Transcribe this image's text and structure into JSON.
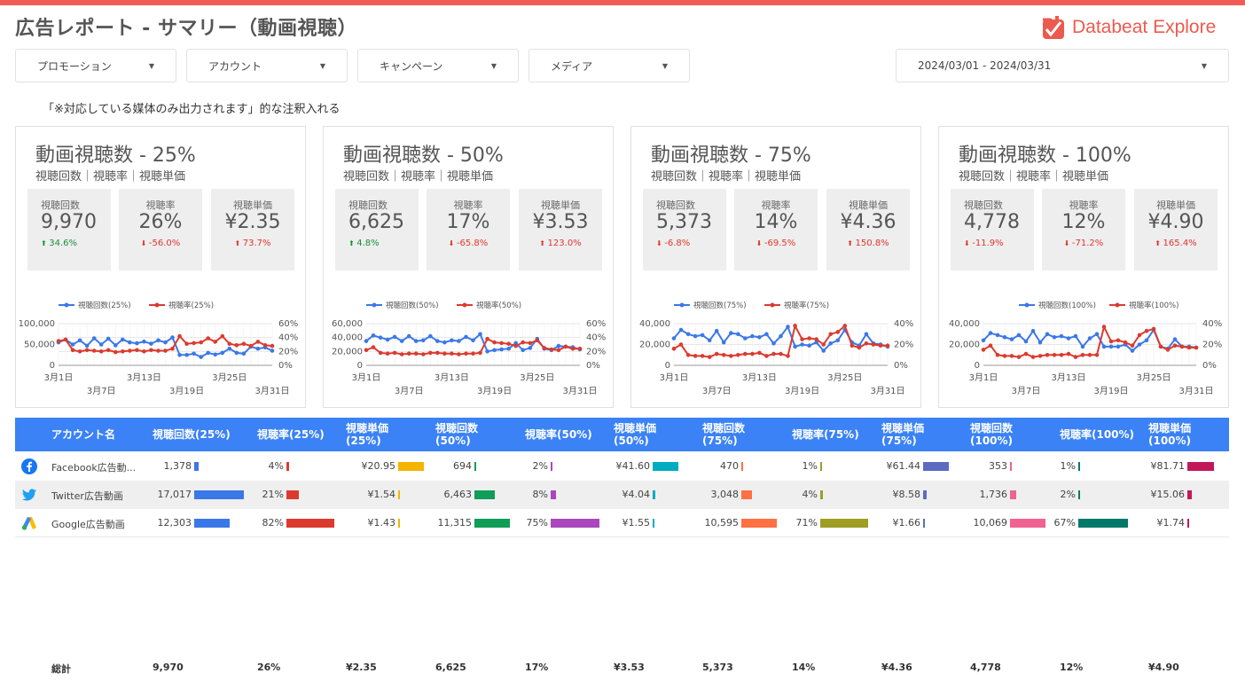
{
  "header": {
    "title": "広告レポート - サマリー（動画視聴）",
    "logo_text": "Databeat Explore",
    "accent": "#f25a56"
  },
  "filters": [
    {
      "label": "プロモーション"
    },
    {
      "label": "アカウント"
    },
    {
      "label": "キャンペーン"
    },
    {
      "label": "メディア"
    }
  ],
  "date_range": "2024/03/01 - 2024/03/31",
  "note": "「※対応している媒体のみ出力されます」的な注釈入れる",
  "cards": [
    {
      "title": "動画視聴数 - 25%",
      "subtitle": "視聴回数｜視聴率｜視聴単価",
      "kpis": [
        {
          "label": "視聴回数",
          "value": "9,970",
          "delta": "34.6%",
          "dir": "up"
        },
        {
          "label": "視聴率",
          "value": "26%",
          "delta": "-56.0%",
          "dir": "down"
        },
        {
          "label": "視聴単価",
          "value": "¥2.35",
          "delta": "73.7%",
          "dir": "upred"
        }
      ],
      "legend": [
        "視聴回数(25%)",
        "視聴率(25%)"
      ],
      "left_ticks": [
        "100,000",
        "50,000",
        "0"
      ],
      "right_ticks": [
        "60%",
        "40%",
        "20%",
        "0%"
      ],
      "xticks_top": [
        "3月1日",
        "3月13日",
        "3月25日"
      ],
      "xticks_bottom": [
        "3月7日",
        "3月19日",
        "3月31日"
      ]
    },
    {
      "title": "動画視聴数 - 50%",
      "subtitle": "視聴回数｜視聴率｜視聴単価",
      "kpis": [
        {
          "label": "視聴回数",
          "value": "6,625",
          "delta": "4.8%",
          "dir": "up"
        },
        {
          "label": "視聴率",
          "value": "17%",
          "delta": "-65.8%",
          "dir": "down"
        },
        {
          "label": "視聴単価",
          "value": "¥3.53",
          "delta": "123.0%",
          "dir": "upred"
        }
      ],
      "legend": [
        "視聴回数(50%)",
        "視聴率(50%)"
      ],
      "left_ticks": [
        "60,000",
        "40,000",
        "20,000",
        "0"
      ],
      "right_ticks": [
        "60%",
        "40%",
        "20%",
        "0%"
      ],
      "xticks_top": [
        "3月1日",
        "3月13日",
        "3月25日"
      ],
      "xticks_bottom": [
        "3月7日",
        "3月19日",
        "3月31日"
      ]
    },
    {
      "title": "動画視聴数 - 75%",
      "subtitle": "視聴回数｜視聴率｜視聴単価",
      "kpis": [
        {
          "label": "視聴回数",
          "value": "5,373",
          "delta": "-6.8%",
          "dir": "down"
        },
        {
          "label": "視聴率",
          "value": "14%",
          "delta": "-69.5%",
          "dir": "down"
        },
        {
          "label": "視聴単価",
          "value": "¥4.36",
          "delta": "150.8%",
          "dir": "upred"
        }
      ],
      "legend": [
        "視聴回数(75%)",
        "視聴率(75%)"
      ],
      "left_ticks": [
        "40,000",
        "20,000",
        "0"
      ],
      "right_ticks": [
        "40%",
        "20%",
        "0%"
      ],
      "xticks_top": [
        "3月1日",
        "3月13日",
        "3月25日"
      ],
      "xticks_bottom": [
        "3月7日",
        "3月19日",
        "3月31日"
      ]
    },
    {
      "title": "動画視聴数 - 100%",
      "subtitle": "視聴回数｜視聴率｜視聴単価",
      "kpis": [
        {
          "label": "視聴回数",
          "value": "4,778",
          "delta": "-11.9%",
          "dir": "down"
        },
        {
          "label": "視聴率",
          "value": "12%",
          "delta": "-71.2%",
          "dir": "down"
        },
        {
          "label": "視聴単価",
          "value": "¥4.90",
          "delta": "165.4%",
          "dir": "upred"
        }
      ],
      "legend": [
        "視聴回数(100%)",
        "視聴率(100%)"
      ],
      "left_ticks": [
        "40,000",
        "20,000",
        "0"
      ],
      "right_ticks": [
        "40%",
        "20%",
        "0%"
      ],
      "xticks_top": [
        "3月1日",
        "3月13日",
        "3月25日"
      ],
      "xticks_bottom": [
        "3月7日",
        "3月19日",
        "3月31日"
      ]
    }
  ],
  "chart_data": [
    {
      "type": "line",
      "x": [
        "3/1",
        "3/2",
        "3/3",
        "3/4",
        "3/5",
        "3/6",
        "3/7",
        "3/8",
        "3/9",
        "3/10",
        "3/11",
        "3/12",
        "3/13",
        "3/14",
        "3/15",
        "3/16",
        "3/17",
        "3/18",
        "3/19",
        "3/20",
        "3/21",
        "3/22",
        "3/23",
        "3/24",
        "3/25",
        "3/26",
        "3/27",
        "3/28",
        "3/29",
        "3/30",
        "3/31"
      ],
      "series": [
        {
          "name": "視聴回数(25%)",
          "axis": "left",
          "color": "#3b78e7",
          "values": [
            55000,
            62000,
            50000,
            60000,
            47000,
            65000,
            50000,
            64000,
            48000,
            62000,
            55000,
            53000,
            57000,
            52000,
            60000,
            55000,
            67000,
            25000,
            25000,
            28000,
            20000,
            30000,
            26000,
            30000,
            40000,
            30000,
            28000,
            45000,
            40000,
            43000,
            35000
          ]
        },
        {
          "name": "視聴率(25%)",
          "axis": "right",
          "color": "#db3b2f",
          "values": [
            35,
            37,
            22,
            20,
            22,
            21,
            20,
            22,
            19,
            20,
            21,
            22,
            20,
            22,
            21,
            21,
            24,
            42,
            31,
            32,
            33,
            39,
            34,
            42,
            31,
            29,
            31,
            28,
            34,
            29,
            28
          ]
        }
      ],
      "ylim_left": [
        0,
        100000
      ],
      "ylim_right": [
        0,
        60
      ]
    },
    {
      "type": "line",
      "x": [
        "3/1",
        "3/2",
        "3/3",
        "3/4",
        "3/5",
        "3/6",
        "3/7",
        "3/8",
        "3/9",
        "3/10",
        "3/11",
        "3/12",
        "3/13",
        "3/14",
        "3/15",
        "3/16",
        "3/17",
        "3/18",
        "3/19",
        "3/20",
        "3/21",
        "3/22",
        "3/23",
        "3/24",
        "3/25",
        "3/26",
        "3/27",
        "3/28",
        "3/29",
        "3/30",
        "3/31"
      ],
      "series": [
        {
          "name": "視聴回数(50%)",
          "axis": "left",
          "color": "#3b78e7",
          "values": [
            35000,
            43000,
            40000,
            37000,
            41000,
            35000,
            42000,
            35000,
            36000,
            42000,
            35000,
            33000,
            36000,
            35000,
            41000,
            36000,
            45000,
            20000,
            22000,
            23000,
            24000,
            32000,
            22000,
            25000,
            38000,
            24000,
            22000,
            28000,
            27000,
            26000,
            23000
          ]
        },
        {
          "name": "視聴率(50%)",
          "axis": "right",
          "color": "#db3b2f",
          "values": [
            22,
            26,
            18,
            17,
            18,
            16,
            17,
            17,
            16,
            18,
            18,
            17,
            17,
            16,
            17,
            17,
            18,
            38,
            33,
            32,
            31,
            28,
            33,
            32,
            36,
            25,
            23,
            22,
            27,
            24,
            24
          ]
        }
      ],
      "ylim_left": [
        0,
        60000
      ],
      "ylim_right": [
        0,
        60
      ]
    },
    {
      "type": "line",
      "x": [
        "3/1",
        "3/2",
        "3/3",
        "3/4",
        "3/5",
        "3/6",
        "3/7",
        "3/8",
        "3/9",
        "3/10",
        "3/11",
        "3/12",
        "3/13",
        "3/14",
        "3/15",
        "3/16",
        "3/17",
        "3/18",
        "3/19",
        "3/20",
        "3/21",
        "3/22",
        "3/23",
        "3/24",
        "3/25",
        "3/26",
        "3/27",
        "3/28",
        "3/29",
        "3/30",
        "3/31"
      ],
      "series": [
        {
          "name": "視聴回数(75%)",
          "axis": "left",
          "color": "#3b78e7",
          "values": [
            26000,
            34000,
            30000,
            28000,
            29000,
            24000,
            33000,
            22000,
            31000,
            30000,
            26000,
            28000,
            27000,
            30000,
            21000,
            28000,
            37000,
            18000,
            20000,
            19000,
            22000,
            14000,
            21000,
            24000,
            34000,
            22000,
            19000,
            30000,
            21000,
            20000,
            18000
          ]
        },
        {
          "name": "視聴率(75%)",
          "axis": "right",
          "color": "#db3b2f",
          "values": [
            16,
            20,
            10,
            9,
            9,
            8,
            11,
            10,
            9,
            10,
            11,
            11,
            12,
            9,
            11,
            11,
            9,
            38,
            25,
            26,
            25,
            20,
            30,
            32,
            38,
            19,
            17,
            21,
            20,
            19,
            19
          ]
        }
      ],
      "ylim_left": [
        0,
        40000
      ],
      "ylim_right": [
        0,
        40
      ]
    },
    {
      "type": "line",
      "x": [
        "3/1",
        "3/2",
        "3/3",
        "3/4",
        "3/5",
        "3/6",
        "3/7",
        "3/8",
        "3/9",
        "3/10",
        "3/11",
        "3/12",
        "3/13",
        "3/14",
        "3/15",
        "3/16",
        "3/17",
        "3/18",
        "3/19",
        "3/20",
        "3/21",
        "3/22",
        "3/23",
        "3/24",
        "3/25",
        "3/26",
        "3/27",
        "3/28",
        "3/29",
        "3/30",
        "3/31"
      ],
      "series": [
        {
          "name": "視聴回数(100%)",
          "axis": "left",
          "color": "#3b78e7",
          "values": [
            24000,
            31000,
            29000,
            27000,
            25000,
            29000,
            23000,
            33000,
            22000,
            30000,
            27000,
            28000,
            26000,
            28000,
            18000,
            26000,
            30000,
            18000,
            18000,
            18000,
            20000,
            14000,
            20000,
            24000,
            34000,
            18000,
            16000,
            25000,
            18000,
            18000,
            17000
          ]
        },
        {
          "name": "視聴率(100%)",
          "axis": "right",
          "color": "#db3b2f",
          "values": [
            15,
            19,
            10,
            9,
            9,
            8,
            11,
            8,
            9,
            10,
            10,
            10,
            11,
            8,
            10,
            10,
            10,
            37,
            23,
            24,
            22,
            19,
            29,
            33,
            35,
            18,
            15,
            19,
            18,
            17,
            17
          ]
        }
      ],
      "ylim_left": [
        0,
        40000
      ],
      "ylim_right": [
        0,
        40
      ]
    }
  ],
  "table": {
    "headers": [
      "アカウント名",
      "視聴回数(25%)",
      "視聴率(25%)",
      "視聴単価\n(25%)",
      "視聴回数\n(50%)",
      "視聴率(50%)",
      "視聴単価\n(50%)",
      "視聴回数\n(75%)",
      "視聴率(75%)",
      "視聴単価\n(75%)",
      "視聴回数\n(100%)",
      "視聴率(100%)",
      "視聴単価\n(100%)"
    ],
    "bar_colors": [
      "#3b78e7",
      "#db3b2f",
      "#f4b400",
      "#0f9d58",
      "#ab47bc",
      "#00acc1",
      "#ff7043",
      "#9e9d24",
      "#5c6bc0",
      "#f06292",
      "#00796b",
      "#c2185b"
    ],
    "rows": [
      {
        "account": "Facebook広告動...",
        "icon": "facebook-icon",
        "cells": [
          "1,378",
          "4%",
          "¥20.95",
          "694",
          "2%",
          "¥41.60",
          "470",
          "1%",
          "¥61.44",
          "353",
          "1%",
          "¥81.71"
        ],
        "fills": [
          0.08,
          0.05,
          0.76,
          0.05,
          0.03,
          0.76,
          0.04,
          0.01,
          0.76,
          0.03,
          0.01,
          0.76
        ]
      },
      {
        "account": "Twitter広告動画",
        "icon": "twitter-icon",
        "cells": [
          "17,017",
          "21%",
          "¥1.54",
          "6,463",
          "8%",
          "¥4.04",
          "3,048",
          "4%",
          "¥8.58",
          "1,736",
          "2%",
          "¥15.06"
        ],
        "fills": [
          1.0,
          0.26,
          0.06,
          0.57,
          0.1,
          0.07,
          0.29,
          0.06,
          0.11,
          0.17,
          0.03,
          0.13
        ]
      },
      {
        "account": "Google広告動画",
        "icon": "google-ads-icon",
        "cells": [
          "12,303",
          "82%",
          "¥1.43",
          "11,315",
          "75%",
          "¥1.55",
          "10,595",
          "71%",
          "¥1.66",
          "10,069",
          "67%",
          "¥1.74"
        ],
        "fills": [
          0.72,
          1.0,
          0.05,
          1.0,
          1.0,
          0.03,
          1.0,
          1.0,
          0.02,
          1.0,
          1.0,
          0.02
        ]
      }
    ],
    "totals": {
      "label": "総計",
      "cells": [
        "9,970",
        "26%",
        "¥2.35",
        "6,625",
        "17%",
        "¥3.53",
        "5,373",
        "14%",
        "¥4.36",
        "4,778",
        "12%",
        "¥4.90"
      ]
    }
  }
}
